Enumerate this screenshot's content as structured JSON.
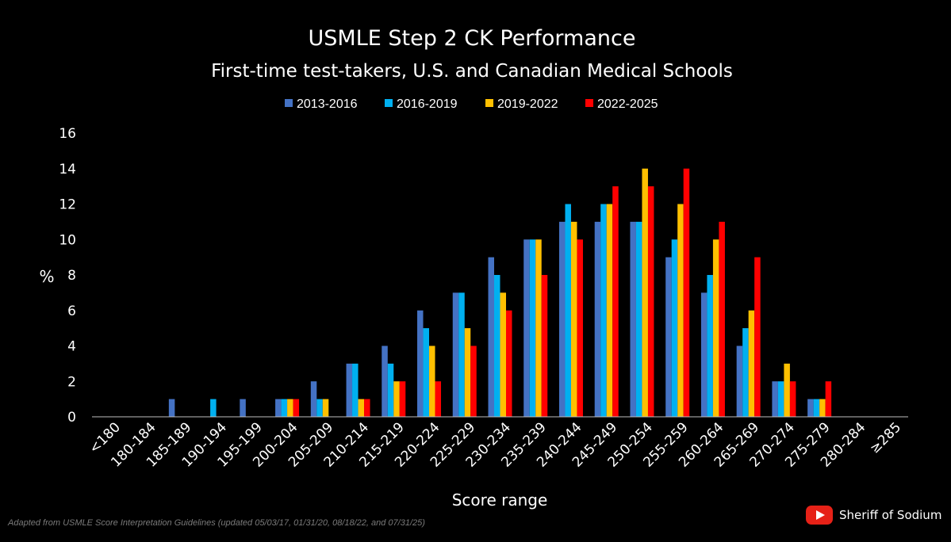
{
  "chart_data": {
    "type": "bar",
    "title": "USMLE Step 2 CK Performance",
    "subtitle": "First-time test-takers, U.S. and Canadian Medical Schools",
    "xlabel": "Score range",
    "ylabel": "%",
    "ylim": [
      0,
      16
    ],
    "yticks": [
      "0",
      "2",
      "4",
      "6",
      "8",
      "10",
      "12",
      "14",
      "16"
    ],
    "legend_position": "top-center",
    "grid": false,
    "categories": [
      "<180",
      "180-184",
      "185-189",
      "190-194",
      "195-199",
      "200-204",
      "205-209",
      "210-214",
      "215-219",
      "220-224",
      "225-229",
      "230-234",
      "235-239",
      "240-244",
      "245-249",
      "250-254",
      "255-259",
      "260-264",
      "265-269",
      "270-274",
      "275-279",
      "280-284",
      "≥285"
    ],
    "series": [
      {
        "name": "2013-2016",
        "color": "#4472C4",
        "values": [
          0,
          0,
          1,
          0,
          1,
          1,
          2,
          3,
          4,
          6,
          7,
          9,
          10,
          11,
          11,
          11,
          9,
          7,
          4,
          2,
          1,
          0,
          0
        ]
      },
      {
        "name": "2016-2019",
        "color": "#00B0F0",
        "values": [
          0,
          0,
          0,
          1,
          0,
          1,
          1,
          3,
          3,
          5,
          7,
          8,
          10,
          12,
          12,
          11,
          10,
          8,
          5,
          2,
          1,
          0,
          0
        ]
      },
      {
        "name": "2019-2022",
        "color": "#FFC000",
        "values": [
          0,
          0,
          0,
          0,
          0,
          1,
          1,
          1,
          2,
          4,
          5,
          7,
          10,
          11,
          12,
          14,
          12,
          10,
          6,
          3,
          1,
          0,
          0
        ]
      },
      {
        "name": "2022-2025",
        "color": "#FF0000",
        "values": [
          0,
          0,
          0,
          0,
          0,
          1,
          0,
          1,
          2,
          2,
          4,
          6,
          8,
          10,
          13,
          13,
          14,
          11,
          9,
          2,
          2,
          0,
          0
        ]
      }
    ]
  },
  "credit": "Adapted from USMLE Score Interpretation Guidelines (updated 05/03/17, 01/31/20, 08/18/22, and 07/31/25)",
  "watermark": {
    "text": "Sheriff of Sodium",
    "icon": "youtube-icon"
  }
}
